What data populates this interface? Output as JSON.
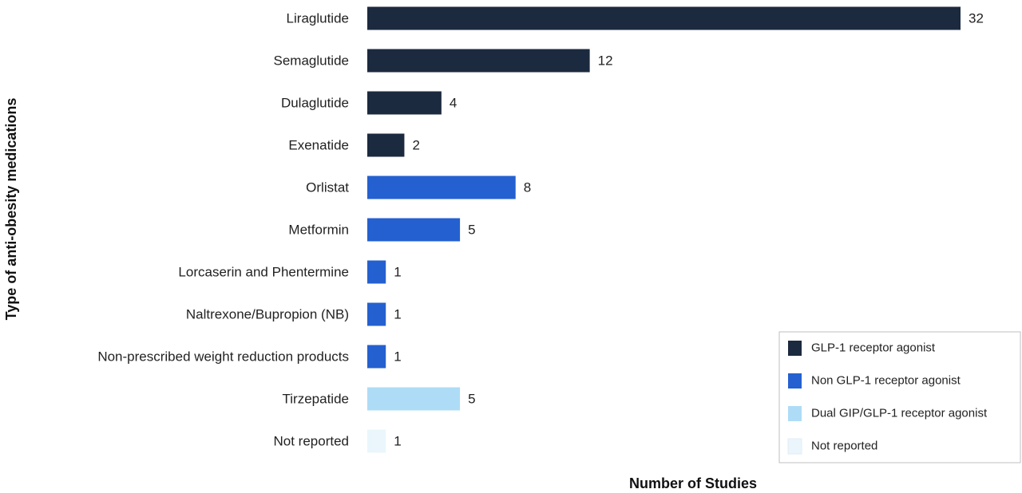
{
  "chart_data": {
    "type": "bar",
    "orientation": "horizontal",
    "title": "",
    "xlabel": "Number of Studies",
    "ylabel": "Type of anti-obesity medications",
    "xlim": [
      0,
      32
    ],
    "grid": false,
    "legend_position": "bottom-right",
    "categories": [
      "Liraglutide",
      "Semaglutide",
      "Dulaglutide",
      "Exenatide",
      "Orlistat",
      "Metformin",
      "Lorcaserin and Phentermine",
      "Naltrexone/Bupropion (NB)",
      "Non-prescribed weight reduction products",
      "Tirzepatide",
      "Not reported"
    ],
    "values": [
      32,
      12,
      4,
      2,
      8,
      5,
      1,
      1,
      1,
      5,
      1
    ],
    "groups": [
      0,
      0,
      0,
      0,
      1,
      1,
      1,
      1,
      1,
      2,
      3
    ],
    "legend": [
      {
        "label": "GLP-1 receptor agonist",
        "color": "#1c2a3f"
      },
      {
        "label": "Non GLP-1 receptor agonist",
        "color": "#2460d0"
      },
      {
        "label": "Dual GIP/GLP-1 receptor agonist",
        "color": "#aedcf6"
      },
      {
        "label": "Not reported",
        "color": "#eaf6fc"
      }
    ]
  }
}
